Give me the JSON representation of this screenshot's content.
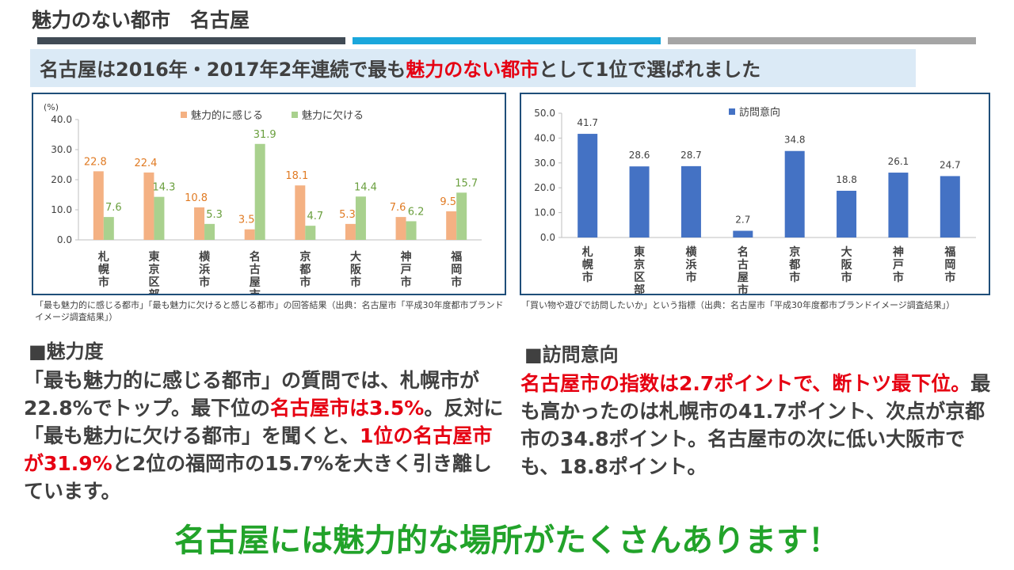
{
  "slide": {
    "title": "魅力のない都市　名古屋",
    "bar_colors": [
      "#404b55",
      "#1aa7dc",
      "#a5a5a5"
    ],
    "accent_red": "#e60012",
    "accent_green": "#22a32a"
  },
  "subtitle": {
    "prefix": "名古屋は2016年・2017年2年連続で最も",
    "highlight": "魅力のない都市",
    "suffix": "として1位で選ばれました"
  },
  "left_caption": "「最も魅力的に感じる都市」「最も魅力に欠けると感じる都市」の回答結果（出典：名古屋市「平成30年度都市ブランドイメージ調査結果」）",
  "right_caption": "「買い物や遊びで訪問したいか」という指標（出典：名古屋市「平成30年度都市ブランドイメージ調査結果」）",
  "section_attractiveness": {
    "heading": "■魅力度",
    "t1": "「最も魅力的に感じる都市」の質問では、札幌市が22.8%でトップ。最下位の",
    "r1": "名古屋市は3.5%",
    "t2": "。反対に「最も魅力に欠ける都市」を聞くと、",
    "r2": "1位の名古屋市が31.9%",
    "t3": "と2位の福岡市の15.7%を大きく引き離しています。"
  },
  "section_visit": {
    "heading": "■訪問意向",
    "r1": "名古屋市の指数は2.7ポイントで、断トツ最下位。",
    "t1": "最も高かったのは札幌市の41.7ポイント、次点が京都市の34.8ポイント。名古屋市の次に低い大阪市でも、18.8ポイント。"
  },
  "footer": "名古屋には魅力的な場所がたくさんあります！",
  "chart_data": [
    {
      "type": "bar",
      "unit_label": "(%)",
      "categories": [
        "札幌市",
        "東京区部",
        "横浜市",
        "名古屋市",
        "京都市",
        "大阪市",
        "神戸市",
        "福岡市"
      ],
      "series": [
        {
          "name": "魅力的に感じる",
          "color": "#f4b183",
          "label_color": "#e07b24",
          "values": [
            22.8,
            22.4,
            10.8,
            3.5,
            18.1,
            5.3,
            7.6,
            9.5
          ]
        },
        {
          "name": "魅力に欠ける",
          "color": "#a9d18e",
          "label_color": "#6a9f3e",
          "values": [
            7.6,
            14.3,
            5.3,
            31.9,
            4.7,
            14.4,
            6.2,
            15.7
          ]
        }
      ],
      "ylim": [
        0,
        40
      ],
      "yticks": [
        "40.0",
        "30.0",
        "20.0",
        "10.0",
        "0.0"
      ],
      "legend": "top",
      "grid": false
    },
    {
      "type": "bar",
      "categories": [
        "札幌市",
        "東京区部",
        "横浜市",
        "名古屋市",
        "京都市",
        "大阪市",
        "神戸市",
        "福岡市"
      ],
      "series": [
        {
          "name": "訪問意向",
          "color": "#4472c4",
          "label_color": "#404040",
          "values": [
            41.7,
            28.6,
            28.7,
            2.7,
            34.8,
            18.8,
            26.1,
            24.7
          ]
        }
      ],
      "ylim": [
        0,
        50
      ],
      "yticks": [
        "50.0",
        "40.0",
        "30.0",
        "20.0",
        "10.0",
        "0.0"
      ],
      "legend": "top",
      "grid": false
    }
  ]
}
